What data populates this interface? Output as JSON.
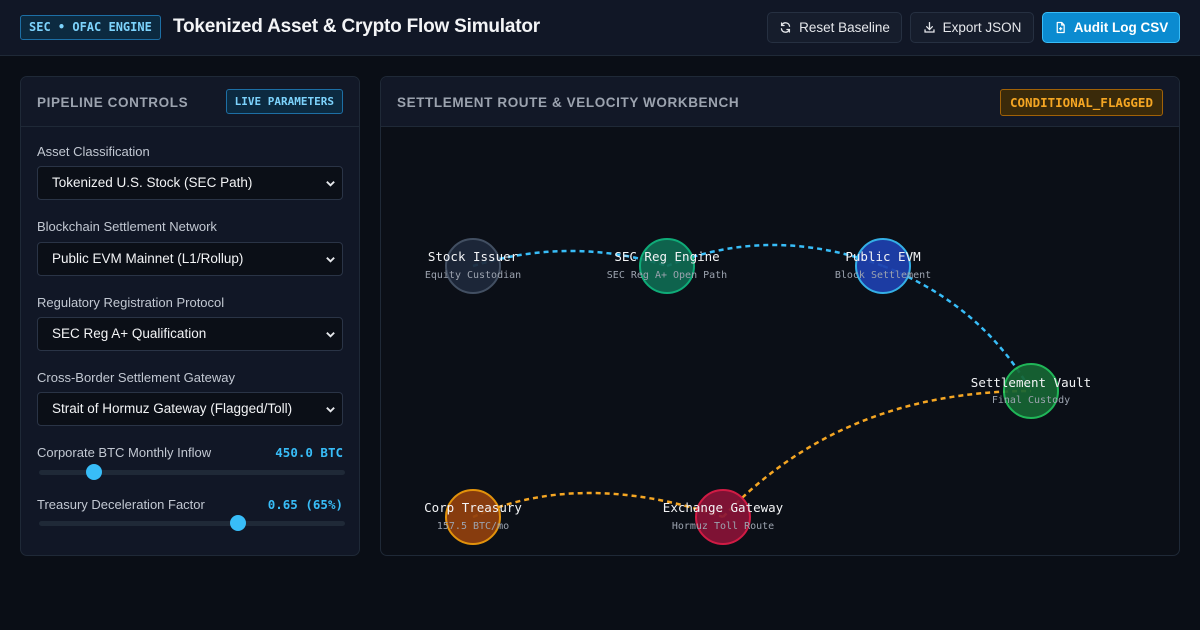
{
  "header": {
    "badge": "SEC • OFAC ENGINE",
    "title": "Tokenized Asset & Crypto Flow Simulator",
    "reset_label": "Reset Baseline",
    "export_label": "Export JSON",
    "audit_label": "Audit Log CSV"
  },
  "controls": {
    "title": "PIPELINE CONTROLS",
    "badge": "LIVE PARAMETERS",
    "asset_label": "Asset Classification",
    "asset_value": "Tokenized U.S. Stock (SEC Path)",
    "network_label": "Blockchain Settlement Network",
    "network_value": "Public EVM Mainnet (L1/Rollup)",
    "protocol_label": "Regulatory Registration Protocol",
    "protocol_value": "SEC Reg A+ Qualification",
    "gateway_label": "Cross-Border Settlement Gateway",
    "gateway_value": "Strait of Hormuz Gateway (Flagged/Toll)",
    "btc_label": "Corporate BTC Monthly Inflow",
    "btc_value": "450.0 BTC",
    "btc_level": 0.18,
    "decel_label": "Treasury Deceleration Factor",
    "decel_value": "0.65 (65%)",
    "decel_level": 0.65
  },
  "workbench": {
    "title": "SETTLEMENT ROUTE & VELOCITY WORKBENCH",
    "status": "CONDITIONAL_FLAGGED",
    "nodes": [
      {
        "label": "Stock Issuer",
        "sub": "Equity Custodian",
        "color": "#475569",
        "fill": "#1e293b"
      },
      {
        "label": "SEC Reg Engine",
        "sub": "SEC Reg A+ Open Path",
        "color": "#10b981",
        "fill": "#0f6b52"
      },
      {
        "label": "Public EVM",
        "sub": "Block Settlement",
        "color": "#38bdf8",
        "fill": "#1e40af"
      },
      {
        "label": "Settlement Vault",
        "sub": "Final Custody",
        "color": "#22c55e",
        "fill": "#166534"
      },
      {
        "label": "Corp Treasury",
        "sub": "157.5 BTC/mo",
        "color": "#f59e0b",
        "fill": "#92400e"
      },
      {
        "label": "Exchange Gateway",
        "sub": "Hormuz Toll Route",
        "color": "#e11d48",
        "fill": "#881337"
      }
    ],
    "colors": {
      "equity_route": "#38bdf8",
      "crypto_route": "#f5a623"
    }
  }
}
